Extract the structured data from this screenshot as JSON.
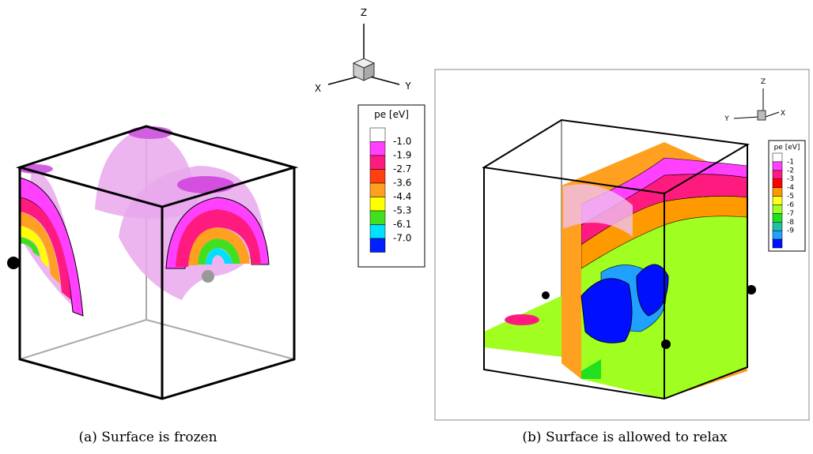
{
  "panel_a": {
    "triad": {
      "z": "Z",
      "x": "X",
      "y": "Y"
    },
    "legend": {
      "title": "pe [eV]",
      "swatches": [
        "#ffffff",
        "#ff40ff",
        "#ff1a80",
        "#ff4010",
        "#ffa020",
        "#ffff00",
        "#40e020",
        "#00e0ff",
        "#0020ff"
      ],
      "labels": [
        "-1.0",
        "-1.9",
        "-2.7",
        "-3.6",
        "-4.4",
        "-5.3",
        "-6.1",
        "-7.0"
      ]
    },
    "caption": "(a)  Surface is frozen"
  },
  "panel_b": {
    "triad": {
      "z": "Z",
      "y": "Y",
      "x": "X"
    },
    "legend": {
      "title": "pe [eV]",
      "swatches": [
        "#ffffff",
        "#ff40ff",
        "#ff1a80",
        "#ff0000",
        "#ff9900",
        "#ffff20",
        "#a0ff20",
        "#20e020",
        "#20c0a0",
        "#20a0ff",
        "#0010ff"
      ],
      "labels": [
        "-1",
        "-2",
        "-3",
        "-4",
        "-5",
        "-6",
        "-7",
        "-8",
        "-9"
      ]
    },
    "caption": "(b)  Surface is allowed to relax"
  }
}
